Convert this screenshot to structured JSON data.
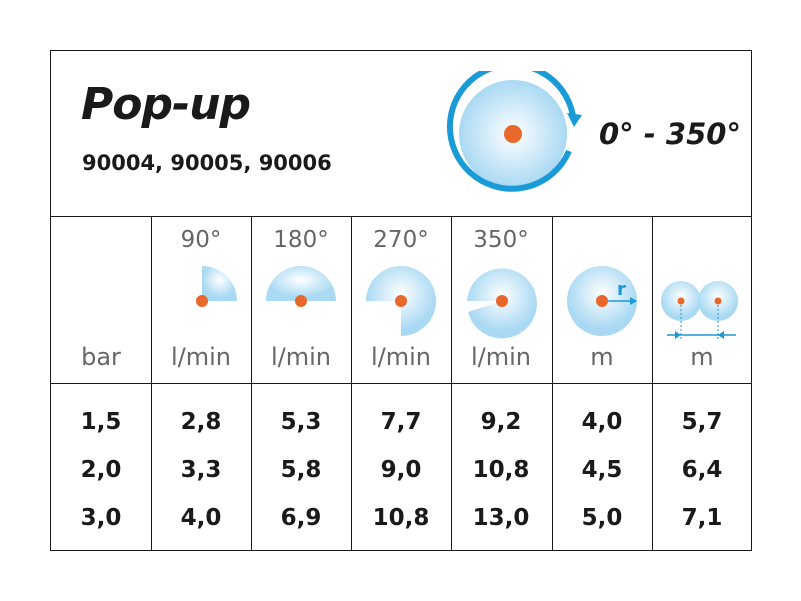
{
  "product": {
    "title": "Pop-up",
    "models": "90004, 90005, 90006",
    "rotation_range": "0° - 350°"
  },
  "colors": {
    "water_blue": "#a9d9f3",
    "arrow_blue": "#1a9ad6",
    "nozzle_orange": "#e8672a"
  },
  "columns": [
    {
      "angle": "",
      "unit": "bar",
      "icon": "none"
    },
    {
      "angle": "90°",
      "unit": "l/min",
      "icon": "spray-90-icon"
    },
    {
      "angle": "180°",
      "unit": "l/min",
      "icon": "spray-180-icon"
    },
    {
      "angle": "270°",
      "unit": "l/min",
      "icon": "spray-270-icon"
    },
    {
      "angle": "350°",
      "unit": "l/min",
      "icon": "spray-350-icon"
    },
    {
      "angle": "",
      "unit": "m",
      "icon": "radius-icon",
      "icon_label": "r"
    },
    {
      "angle": "",
      "unit": "m",
      "icon": "spacing-icon"
    }
  ],
  "rows": [
    [
      "1,5",
      "2,8",
      "5,3",
      "7,7",
      "9,2",
      "4,0",
      "5,7"
    ],
    [
      "2,0",
      "3,3",
      "5,8",
      "9,0",
      "10,8",
      "4,5",
      "6,4"
    ],
    [
      "3,0",
      "4,0",
      "6,9",
      "10,8",
      "13,0",
      "5,0",
      "7,1"
    ]
  ]
}
